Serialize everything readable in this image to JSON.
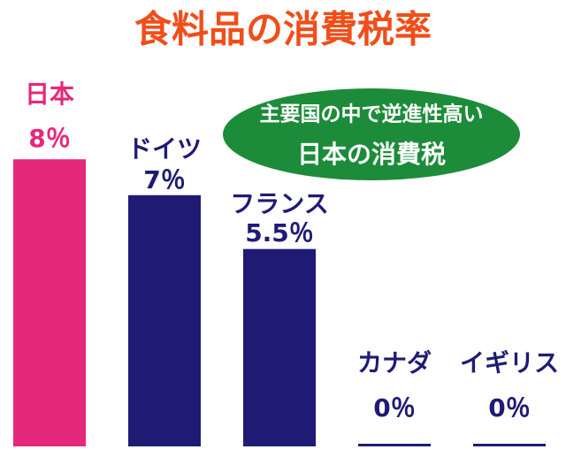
{
  "chart_data": {
    "type": "bar",
    "title": "食料品の消費税率",
    "categories": [
      "日本",
      "ドイツ",
      "フランス",
      "カナダ",
      "イギリス"
    ],
    "values": [
      8,
      7,
      5.5,
      0,
      0
    ],
    "value_labels": [
      "8％",
      "7％",
      "5.5％",
      "0％",
      "0％"
    ],
    "colors": [
      "#e6287a",
      "#1f1b74",
      "#1f1b74",
      "#1f1b74",
      "#1f1b74"
    ],
    "annotation": [
      "主要国の中で逆進性高い",
      "日本の消費税"
    ]
  }
}
